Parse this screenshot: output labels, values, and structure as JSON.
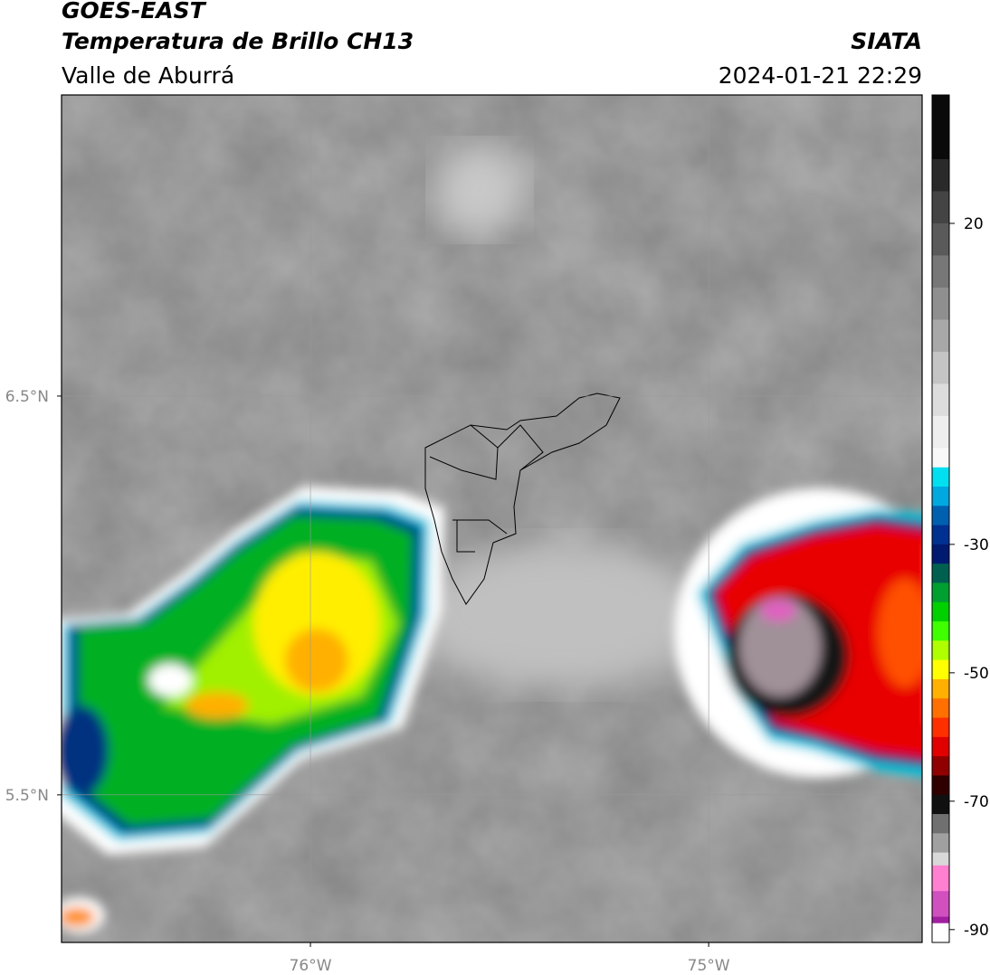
{
  "header": {
    "line1": "GOES-EAST",
    "line2": "Temperatura de Brillo CH13",
    "line3": "Valle de Aburrá",
    "source": "SIATA",
    "datetime": "2024-01-21 22:29"
  },
  "map": {
    "xlim": [
      -76.625,
      -74.464
    ],
    "ylim": [
      5.13,
      7.255
    ],
    "xticks": [
      {
        "value": -76,
        "label": "76°W"
      },
      {
        "value": -75,
        "label": "75°W"
      }
    ],
    "yticks": [
      {
        "value": 6.5,
        "label": "6.5°N"
      },
      {
        "value": 5.5,
        "label": "5.5°N"
      }
    ],
    "grid": true
  },
  "colorbar": {
    "lim": [
      -92,
      40
    ],
    "ticks": [
      20,
      -30,
      -50,
      -70,
      -90
    ],
    "colormap": [
      {
        "value": 40,
        "color": "#0a0a0a"
      },
      {
        "value": 30,
        "color": "#2a2a2a"
      },
      {
        "value": 25,
        "color": "#444444"
      },
      {
        "value": 20,
        "color": "#5a5a5a"
      },
      {
        "value": 15,
        "color": "#777777"
      },
      {
        "value": 10,
        "color": "#8f8f8f"
      },
      {
        "value": 5,
        "color": "#a8a8a8"
      },
      {
        "value": 0,
        "color": "#c4c4c4"
      },
      {
        "value": -5,
        "color": "#dcdcdc"
      },
      {
        "value": -10,
        "color": "#eeeeee"
      },
      {
        "value": -15,
        "color": "#f8f8f8"
      },
      {
        "value": -18,
        "color": "#00e0f0"
      },
      {
        "value": -21,
        "color": "#00a8e0"
      },
      {
        "value": -24,
        "color": "#0060b0"
      },
      {
        "value": -27,
        "color": "#003090"
      },
      {
        "value": -30,
        "color": "#001a70"
      },
      {
        "value": -33,
        "color": "#006050"
      },
      {
        "value": -36,
        "color": "#00a030"
      },
      {
        "value": -39,
        "color": "#00d000"
      },
      {
        "value": -42,
        "color": "#40ff00"
      },
      {
        "value": -45,
        "color": "#b0ff00"
      },
      {
        "value": -48,
        "color": "#ffff00"
      },
      {
        "value": -51,
        "color": "#ffb000"
      },
      {
        "value": -54,
        "color": "#ff7000"
      },
      {
        "value": -57,
        "color": "#ff3000"
      },
      {
        "value": -60,
        "color": "#e00000"
      },
      {
        "value": -63,
        "color": "#900000"
      },
      {
        "value": -66,
        "color": "#300000"
      },
      {
        "value": -69,
        "color": "#101010"
      },
      {
        "value": -72,
        "color": "#707070"
      },
      {
        "value": -75,
        "color": "#a0a0a0"
      },
      {
        "value": -78,
        "color": "#d8d8d8"
      },
      {
        "value": -80,
        "color": "#ff80d0"
      },
      {
        "value": -84,
        "color": "#d050c0"
      },
      {
        "value": -88,
        "color": "#a020a0"
      },
      {
        "value": -89,
        "color": "#ffffff"
      }
    ]
  }
}
